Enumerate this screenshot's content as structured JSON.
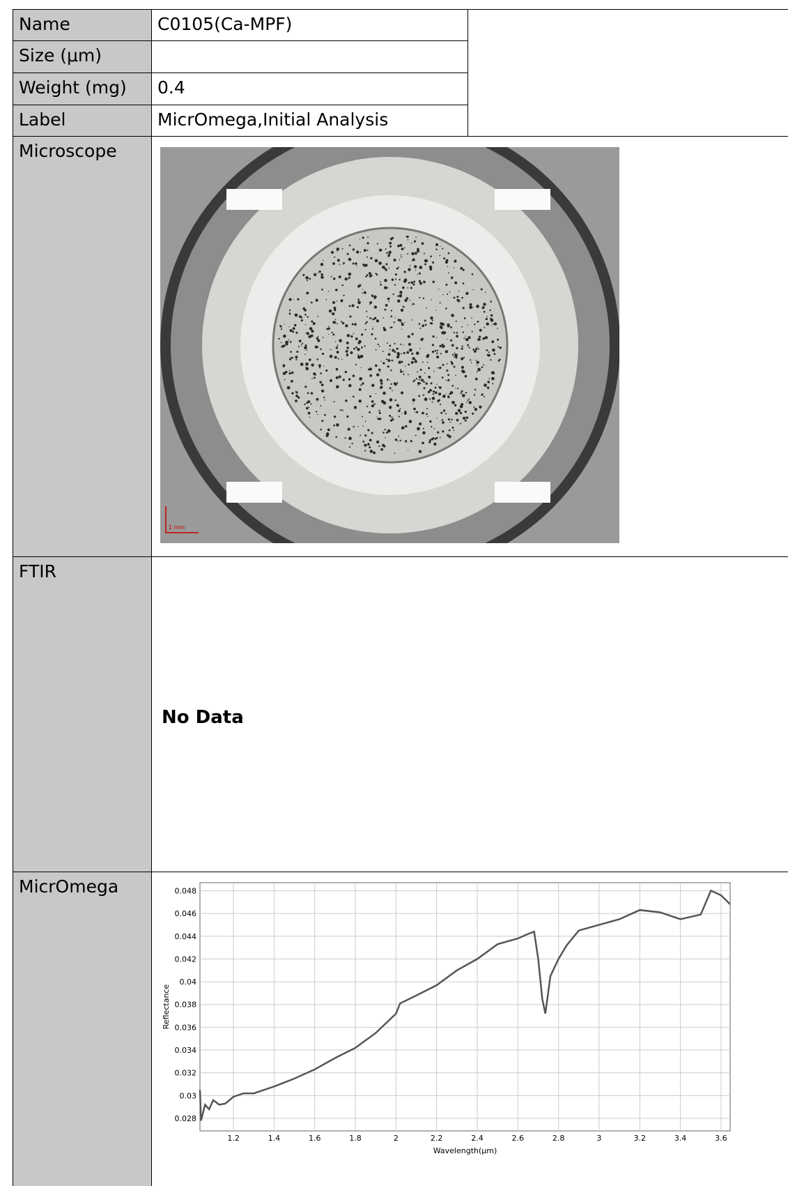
{
  "table": {
    "rows": [
      {
        "label": "Name",
        "value": "C0105(Ca-MPF)"
      },
      {
        "label": "Size (μm)"
      },
      {
        "label": "Weight (mg)",
        "value": "0.4"
      },
      {
        "label": "Label",
        "value": "MicrOmega,Initial Analysis"
      },
      {
        "label": "Microscope",
        "scale_bar": "1 mm"
      },
      {
        "label": "FTIR",
        "value": "No Data"
      },
      {
        "label": "MicrOmega"
      }
    ]
  },
  "chart_data": {
    "type": "line",
    "x_label": "Wavelength(μm)",
    "y_label": "Reflectance",
    "color": "#555555",
    "grid": true,
    "x": [
      1.035,
      1.04,
      1.06,
      1.08,
      1.1,
      1.13,
      1.16,
      1.2,
      1.25,
      1.3,
      1.4,
      1.5,
      1.6,
      1.7,
      1.8,
      1.9,
      2.0,
      2.02,
      2.1,
      2.2,
      2.3,
      2.4,
      2.5,
      2.6,
      2.65,
      2.68,
      2.7,
      2.72,
      2.735,
      2.76,
      2.8,
      2.84,
      2.9,
      3.0,
      3.1,
      3.2,
      3.3,
      3.4,
      3.5,
      3.55,
      3.6,
      3.645
    ],
    "values": [
      0.0305,
      0.0278,
      0.0292,
      0.0288,
      0.0296,
      0.0292,
      0.0293,
      0.0299,
      0.0302,
      0.0302,
      0.0308,
      0.0315,
      0.0323,
      0.0333,
      0.0342,
      0.0355,
      0.0372,
      0.0381,
      0.0388,
      0.0397,
      0.041,
      0.042,
      0.0433,
      0.0438,
      0.0442,
      0.0444,
      0.042,
      0.0385,
      0.0372,
      0.0405,
      0.042,
      0.0432,
      0.0445,
      0.045,
      0.0455,
      0.0463,
      0.0461,
      0.0455,
      0.0459,
      0.048,
      0.0476,
      0.0468
    ],
    "xlim": [
      1.035,
      3.645
    ],
    "ylim": [
      0.0269,
      0.0487
    ],
    "xticks": [
      1.2,
      1.4,
      1.6,
      1.8,
      2,
      2.2,
      2.4,
      2.6,
      2.8,
      3,
      3.2,
      3.4,
      3.6
    ],
    "yticks": [
      0.028,
      0.03,
      0.032,
      0.034,
      0.036,
      0.038,
      0.04,
      0.042,
      0.044,
      0.046,
      0.048
    ]
  }
}
